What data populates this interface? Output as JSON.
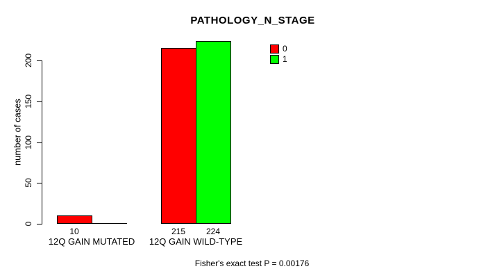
{
  "title": "PATHOLOGY_N_STAGE",
  "footer": "Fisher's exact test P = 0.00176",
  "colors": {
    "series_0": "#FF0000",
    "series_1": "#00FF00",
    "axis": "#000000",
    "background": "#FFFFFF"
  },
  "chart_data": {
    "type": "bar",
    "title": "PATHOLOGY_N_STAGE",
    "xlabel": "",
    "ylabel": "number of cases",
    "ylim": [
      0,
      224
    ],
    "yticks": [
      0,
      50,
      100,
      150,
      200
    ],
    "grid": false,
    "legend_position": "top-right",
    "legend": [
      {
        "label": "0",
        "color": "#FF0000"
      },
      {
        "label": "1",
        "color": "#00FF00"
      }
    ],
    "categories": [
      "12Q GAIN MUTATED",
      "12Q GAIN WILD-TYPE"
    ],
    "series": [
      {
        "name": "0",
        "color": "#FF0000",
        "values": [
          10,
          215
        ]
      },
      {
        "name": "1",
        "color": "#00FF00",
        "values": [
          0,
          224
        ]
      }
    ],
    "bar_value_labels_shown_for_nonzero": true,
    "annotation": "Fisher's exact test P = 0.00176"
  }
}
